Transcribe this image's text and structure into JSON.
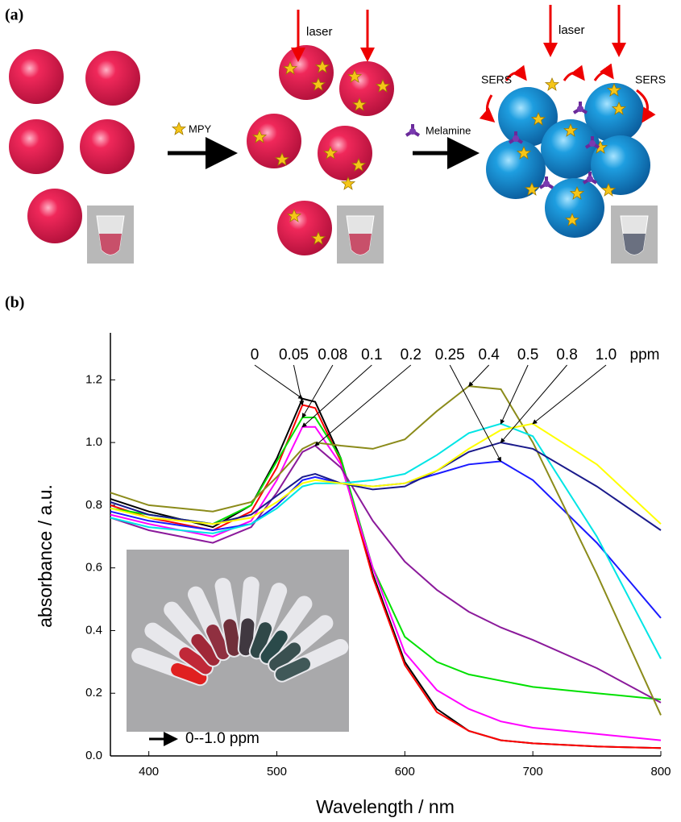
{
  "panel_a": {
    "label": "(a)",
    "laser_labels": [
      "laser",
      "laser"
    ],
    "reagents": [
      "MPY",
      "Melamine"
    ],
    "sers_labels": [
      "SERS",
      "SERS"
    ]
  },
  "chart_data": {
    "type": "line",
    "panel_label": "(b)",
    "x_label": "Wavelength / nm",
    "y_label": "absorbance / a.u.",
    "x": [
      370,
      400,
      450,
      480,
      500,
      520,
      530,
      550,
      575,
      600,
      625,
      650,
      675,
      700,
      750,
      800
    ],
    "xlim": [
      370,
      800
    ],
    "xticks": [
      400,
      500,
      600,
      700,
      800
    ],
    "ylim": [
      0,
      1.35
    ],
    "yticks": [
      {
        "value": 0,
        "label": "0.0"
      },
      0.2,
      0.4,
      0.6,
      0.8,
      {
        "value": 1,
        "label": "1.0"
      },
      1.2
    ],
    "concentration_unit": "ppm",
    "inset_caption": "0--1.0 ppm",
    "series": [
      {
        "name": "0",
        "color": "#000000",
        "values": [
          0.82,
          0.78,
          0.73,
          0.8,
          0.95,
          1.14,
          1.13,
          0.95,
          0.58,
          0.3,
          0.15,
          0.08,
          0.05,
          0.04,
          0.03,
          0.025
        ]
      },
      {
        "name": "0.05",
        "color": "#ff0000",
        "values": [
          0.8,
          0.76,
          0.72,
          0.78,
          0.92,
          1.12,
          1.11,
          0.94,
          0.57,
          0.29,
          0.14,
          0.08,
          0.05,
          0.04,
          0.03,
          0.025
        ]
      },
      {
        "name": "0.08",
        "color": "#00e000",
        "values": [
          0.79,
          0.77,
          0.74,
          0.8,
          0.94,
          1.08,
          1.08,
          0.95,
          0.6,
          0.38,
          0.3,
          0.26,
          0.24,
          0.22,
          0.2,
          0.18
        ]
      },
      {
        "name": "0.1",
        "color": "#ff00ff",
        "values": [
          0.77,
          0.74,
          0.7,
          0.75,
          0.88,
          1.05,
          1.05,
          0.93,
          0.6,
          0.33,
          0.21,
          0.15,
          0.11,
          0.09,
          0.07,
          0.05
        ]
      },
      {
        "name": "0.2",
        "color": "#8b1a9b",
        "values": [
          0.76,
          0.72,
          0.68,
          0.73,
          0.84,
          0.97,
          0.99,
          0.92,
          0.75,
          0.62,
          0.53,
          0.46,
          0.41,
          0.37,
          0.28,
          0.17
        ]
      },
      {
        "name": "0.25",
        "color": "#1a1aff",
        "values": [
          0.78,
          0.75,
          0.72,
          0.74,
          0.8,
          0.88,
          0.89,
          0.87,
          0.86,
          0.87,
          0.9,
          0.93,
          0.94,
          0.88,
          0.68,
          0.44
        ]
      },
      {
        "name": "0.4",
        "color": "#8b8b1a",
        "values": [
          0.84,
          0.8,
          0.78,
          0.81,
          0.89,
          0.98,
          1.0,
          0.99,
          0.98,
          1.01,
          1.1,
          1.18,
          1.17,
          1.0,
          0.58,
          0.13
        ]
      },
      {
        "name": "0.5",
        "color": "#00e5e5",
        "values": [
          0.76,
          0.73,
          0.71,
          0.74,
          0.79,
          0.86,
          0.87,
          0.87,
          0.88,
          0.9,
          0.96,
          1.03,
          1.06,
          1.02,
          0.7,
          0.31
        ]
      },
      {
        "name": "0.8",
        "color": "#1a1a8b",
        "values": [
          0.81,
          0.77,
          0.74,
          0.77,
          0.83,
          0.89,
          0.9,
          0.87,
          0.85,
          0.86,
          0.91,
          0.97,
          1.0,
          0.98,
          0.86,
          0.72
        ]
      },
      {
        "name": "1.0",
        "color": "#ffff00",
        "values": [
          0.79,
          0.76,
          0.74,
          0.76,
          0.81,
          0.87,
          0.88,
          0.87,
          0.86,
          0.87,
          0.91,
          0.98,
          1.04,
          1.06,
          0.93,
          0.74
        ]
      }
    ]
  }
}
